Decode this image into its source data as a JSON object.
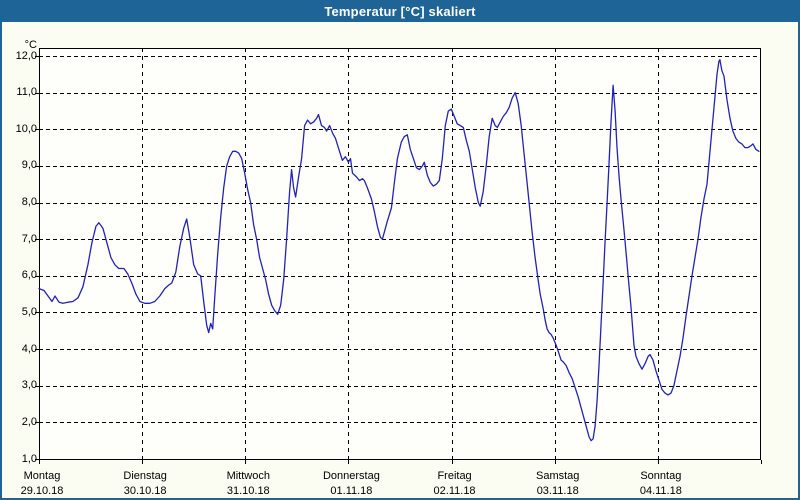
{
  "window": {
    "title": "Temperatur [°C] skaliert"
  },
  "colors": {
    "title_bar": "#1e6496",
    "window_border": "#1e6496",
    "background": "#fbfdf2",
    "plot_background": "#fefffa",
    "grid": "#000000",
    "line": "#2222bb",
    "title_text": "#ffffff"
  },
  "chart_data": {
    "type": "line",
    "title": "Temperatur [°C] skaliert",
    "xlabel": "",
    "ylabel": "°C",
    "y_unit_label": "°C",
    "ylim": [
      1,
      12
    ],
    "y_tick_step": 1,
    "y_tick_labels": [
      "12,0",
      "11,0",
      "10,0",
      "9,0",
      "8,0",
      "7,0",
      "6,0",
      "5,0",
      "4,0",
      "3,0",
      "2,0",
      "1,0"
    ],
    "xlim_days": [
      0,
      7
    ],
    "x_ticks": [
      {
        "day": "Montag",
        "date": "29.10.18"
      },
      {
        "day": "Dienstag",
        "date": "30.10.18"
      },
      {
        "day": "Mittwoch",
        "date": "31.10.18"
      },
      {
        "day": "Donnerstag",
        "date": "01.11.18"
      },
      {
        "day": "Freitag",
        "date": "02.11.18"
      },
      {
        "day": "Samstag",
        "date": "03.11.18"
      },
      {
        "day": "Sonntag",
        "date": "04.11.18"
      }
    ],
    "grid": "dashed",
    "legend": "none",
    "series": [
      {
        "name": "Temperatur [°C]",
        "color": "#2222bb",
        "points": [
          [
            0.0,
            5.65
          ],
          [
            0.048,
            5.6
          ],
          [
            0.087,
            5.45
          ],
          [
            0.126,
            5.3
          ],
          [
            0.155,
            5.45
          ],
          [
            0.194,
            5.28
          ],
          [
            0.232,
            5.25
          ],
          [
            0.281,
            5.28
          ],
          [
            0.329,
            5.3
          ],
          [
            0.378,
            5.4
          ],
          [
            0.426,
            5.7
          ],
          [
            0.474,
            6.3
          ],
          [
            0.513,
            6.9
          ],
          [
            0.552,
            7.35
          ],
          [
            0.581,
            7.45
          ],
          [
            0.62,
            7.3
          ],
          [
            0.658,
            6.9
          ],
          [
            0.697,
            6.5
          ],
          [
            0.736,
            6.3
          ],
          [
            0.774,
            6.2
          ],
          [
            0.823,
            6.2
          ],
          [
            0.861,
            6.05
          ],
          [
            0.9,
            5.8
          ],
          [
            0.939,
            5.5
          ],
          [
            0.978,
            5.3
          ],
          [
            1.026,
            5.25
          ],
          [
            1.074,
            5.25
          ],
          [
            1.123,
            5.3
          ],
          [
            1.171,
            5.45
          ],
          [
            1.22,
            5.65
          ],
          [
            1.258,
            5.75
          ],
          [
            1.287,
            5.8
          ],
          [
            1.326,
            6.1
          ],
          [
            1.365,
            6.8
          ],
          [
            1.403,
            7.3
          ],
          [
            1.432,
            7.55
          ],
          [
            1.462,
            7.05
          ],
          [
            1.5,
            6.3
          ],
          [
            1.539,
            6.05
          ],
          [
            1.568,
            6.0
          ],
          [
            1.597,
            5.3
          ],
          [
            1.626,
            4.65
          ],
          [
            1.645,
            4.45
          ],
          [
            1.665,
            4.7
          ],
          [
            1.684,
            4.55
          ],
          [
            1.703,
            5.4
          ],
          [
            1.733,
            6.6
          ],
          [
            1.762,
            7.6
          ],
          [
            1.791,
            8.4
          ],
          [
            1.82,
            9.0
          ],
          [
            1.849,
            9.25
          ],
          [
            1.878,
            9.4
          ],
          [
            1.907,
            9.4
          ],
          [
            1.936,
            9.35
          ],
          [
            1.965,
            9.2
          ],
          [
            1.994,
            8.8
          ],
          [
            2.023,
            8.35
          ],
          [
            2.052,
            8.0
          ],
          [
            2.081,
            7.4
          ],
          [
            2.11,
            7.0
          ],
          [
            2.139,
            6.5
          ],
          [
            2.168,
            6.2
          ],
          [
            2.197,
            5.9
          ],
          [
            2.226,
            5.5
          ],
          [
            2.255,
            5.2
          ],
          [
            2.284,
            5.05
          ],
          [
            2.314,
            4.95
          ],
          [
            2.343,
            5.2
          ],
          [
            2.372,
            5.9
          ],
          [
            2.401,
            7.0
          ],
          [
            2.43,
            8.3
          ],
          [
            2.449,
            8.9
          ],
          [
            2.468,
            8.4
          ],
          [
            2.488,
            8.15
          ],
          [
            2.517,
            8.7
          ],
          [
            2.546,
            9.2
          ],
          [
            2.575,
            10.1
          ],
          [
            2.604,
            10.25
          ],
          [
            2.633,
            10.15
          ],
          [
            2.662,
            10.2
          ],
          [
            2.691,
            10.3
          ],
          [
            2.71,
            10.4
          ],
          [
            2.739,
            10.1
          ],
          [
            2.768,
            10.05
          ],
          [
            2.788,
            9.95
          ],
          [
            2.817,
            10.1
          ],
          [
            2.846,
            9.9
          ],
          [
            2.875,
            9.75
          ],
          [
            2.913,
            9.4
          ],
          [
            2.942,
            9.15
          ],
          [
            2.971,
            9.25
          ],
          [
            3.0,
            9.1
          ],
          [
            3.02,
            9.2
          ],
          [
            3.039,
            8.8
          ],
          [
            3.078,
            8.7
          ],
          [
            3.107,
            8.6
          ],
          [
            3.136,
            8.65
          ],
          [
            3.155,
            8.6
          ],
          [
            3.184,
            8.4
          ],
          [
            3.223,
            8.1
          ],
          [
            3.252,
            7.75
          ],
          [
            3.281,
            7.35
          ],
          [
            3.31,
            7.05
          ],
          [
            3.329,
            7.0
          ],
          [
            3.358,
            7.3
          ],
          [
            3.378,
            7.5
          ],
          [
            3.417,
            7.85
          ],
          [
            3.446,
            8.55
          ],
          [
            3.475,
            9.2
          ],
          [
            3.513,
            9.65
          ],
          [
            3.542,
            9.8
          ],
          [
            3.571,
            9.85
          ],
          [
            3.6,
            9.45
          ],
          [
            3.63,
            9.2
          ],
          [
            3.659,
            8.95
          ],
          [
            3.688,
            8.9
          ],
          [
            3.717,
            9.0
          ],
          [
            3.736,
            9.1
          ],
          [
            3.765,
            8.75
          ],
          [
            3.794,
            8.55
          ],
          [
            3.823,
            8.45
          ],
          [
            3.852,
            8.5
          ],
          [
            3.881,
            8.6
          ],
          [
            3.91,
            9.2
          ],
          [
            3.939,
            10.1
          ],
          [
            3.968,
            10.5
          ],
          [
            3.997,
            10.55
          ],
          [
            4.026,
            10.35
          ],
          [
            4.055,
            10.15
          ],
          [
            4.084,
            10.1
          ],
          [
            4.114,
            10.05
          ],
          [
            4.143,
            9.7
          ],
          [
            4.172,
            9.4
          ],
          [
            4.201,
            8.9
          ],
          [
            4.23,
            8.4
          ],
          [
            4.259,
            8.0
          ],
          [
            4.278,
            7.9
          ],
          [
            4.307,
            8.3
          ],
          [
            4.336,
            9.0
          ],
          [
            4.365,
            9.8
          ],
          [
            4.394,
            10.3
          ],
          [
            4.423,
            10.1
          ],
          [
            4.443,
            10.05
          ],
          [
            4.472,
            10.2
          ],
          [
            4.501,
            10.35
          ],
          [
            4.53,
            10.45
          ],
          [
            4.559,
            10.6
          ],
          [
            4.588,
            10.85
          ],
          [
            4.617,
            11.0
          ],
          [
            4.646,
            10.7
          ],
          [
            4.675,
            10.1
          ],
          [
            4.704,
            9.3
          ],
          [
            4.723,
            8.8
          ],
          [
            4.752,
            8.0
          ],
          [
            4.781,
            7.2
          ],
          [
            4.81,
            6.5
          ],
          [
            4.839,
            5.9
          ],
          [
            4.859,
            5.5
          ],
          [
            4.888,
            5.1
          ],
          [
            4.907,
            4.8
          ],
          [
            4.926,
            4.55
          ],
          [
            4.946,
            4.45
          ],
          [
            4.965,
            4.4
          ],
          [
            4.985,
            4.3
          ],
          [
            5.014,
            4.1
          ],
          [
            5.033,
            3.95
          ],
          [
            5.062,
            3.7
          ],
          [
            5.082,
            3.65
          ],
          [
            5.111,
            3.55
          ],
          [
            5.14,
            3.35
          ],
          [
            5.169,
            3.2
          ],
          [
            5.198,
            2.95
          ],
          [
            5.227,
            2.7
          ],
          [
            5.256,
            2.4
          ],
          [
            5.285,
            2.1
          ],
          [
            5.314,
            1.8
          ],
          [
            5.333,
            1.6
          ],
          [
            5.353,
            1.5
          ],
          [
            5.372,
            1.55
          ],
          [
            5.392,
            1.9
          ],
          [
            5.411,
            2.6
          ],
          [
            5.43,
            3.6
          ],
          [
            5.45,
            4.7
          ],
          [
            5.469,
            5.8
          ],
          [
            5.488,
            6.9
          ],
          [
            5.508,
            8.0
          ],
          [
            5.527,
            9.1
          ],
          [
            5.546,
            10.2
          ],
          [
            5.566,
            11.2
          ],
          [
            5.585,
            10.5
          ],
          [
            5.604,
            9.5
          ],
          [
            5.624,
            8.7
          ],
          [
            5.643,
            8.1
          ],
          [
            5.672,
            7.25
          ],
          [
            5.701,
            6.35
          ],
          [
            5.721,
            5.7
          ],
          [
            5.74,
            5.15
          ],
          [
            5.769,
            4.1
          ],
          [
            5.788,
            3.8
          ],
          [
            5.817,
            3.6
          ],
          [
            5.846,
            3.45
          ],
          [
            5.875,
            3.6
          ],
          [
            5.905,
            3.8
          ],
          [
            5.924,
            3.85
          ],
          [
            5.953,
            3.7
          ],
          [
            5.982,
            3.4
          ],
          [
            6.011,
            3.15
          ],
          [
            6.04,
            2.9
          ],
          [
            6.069,
            2.8
          ],
          [
            6.098,
            2.75
          ],
          [
            6.127,
            2.8
          ],
          [
            6.156,
            3.0
          ],
          [
            6.185,
            3.4
          ],
          [
            6.215,
            3.8
          ],
          [
            6.244,
            4.3
          ],
          [
            6.273,
            4.9
          ],
          [
            6.302,
            5.45
          ],
          [
            6.331,
            6.0
          ],
          [
            6.36,
            6.5
          ],
          [
            6.389,
            7.0
          ],
          [
            6.418,
            7.6
          ],
          [
            6.447,
            8.1
          ],
          [
            6.476,
            8.5
          ],
          [
            6.496,
            9.1
          ],
          [
            6.525,
            10.0
          ],
          [
            6.554,
            10.9
          ],
          [
            6.573,
            11.5
          ],
          [
            6.592,
            11.85
          ],
          [
            6.602,
            11.9
          ],
          [
            6.621,
            11.6
          ],
          [
            6.641,
            11.45
          ],
          [
            6.67,
            10.8
          ],
          [
            6.699,
            10.3
          ],
          [
            6.728,
            9.95
          ],
          [
            6.757,
            9.75
          ],
          [
            6.786,
            9.65
          ],
          [
            6.815,
            9.6
          ],
          [
            6.844,
            9.5
          ],
          [
            6.873,
            9.5
          ],
          [
            6.902,
            9.55
          ],
          [
            6.922,
            9.6
          ],
          [
            6.951,
            9.45
          ],
          [
            6.98,
            9.4
          ]
        ]
      }
    ]
  }
}
